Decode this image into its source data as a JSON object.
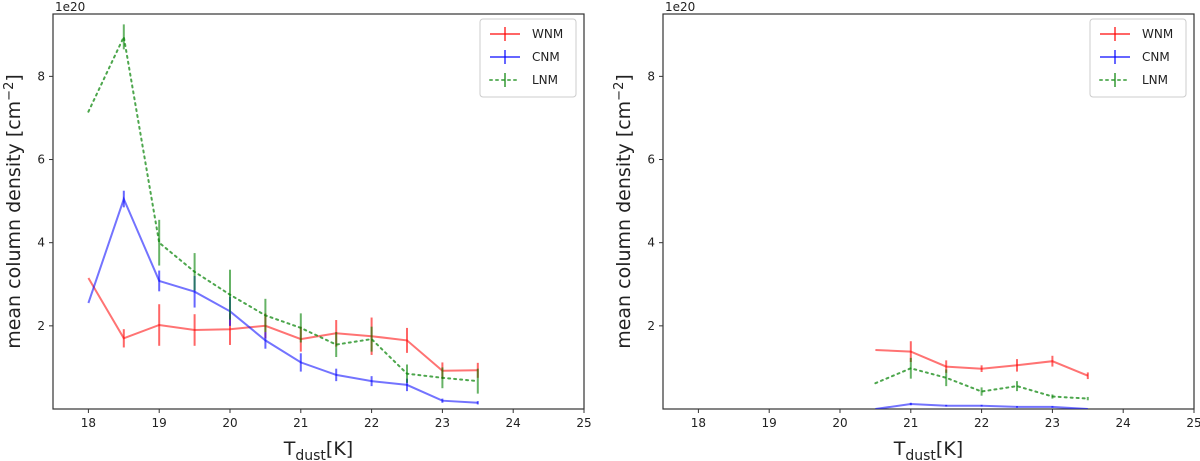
{
  "chart_data": [
    {
      "type": "line",
      "panel": "left",
      "xlabel_main": "T",
      "xlabel_sub": "dust",
      "xlabel_unit": "[K]",
      "ylabel": "mean column density [cm",
      "ylabel_exp": "−2",
      "ylabel_close": "]",
      "y_offset_label": "1e20",
      "xlim": [
        17.5,
        25
      ],
      "ylim": [
        0,
        9.5
      ],
      "xticks": [
        "18",
        "19",
        "20",
        "21",
        "22",
        "23",
        "24",
        "25"
      ],
      "yticks": [
        "2",
        "4",
        "6",
        "8"
      ],
      "legend_position": "top-right",
      "series": [
        {
          "name": "WNM",
          "color": "#ff0000",
          "style": "solid",
          "x": [
            18,
            18.5,
            19,
            19.5,
            20,
            20.5,
            21,
            21.5,
            22,
            22.5,
            23,
            23.5
          ],
          "y": [
            3.15,
            1.7,
            2.02,
            1.9,
            1.92,
            2.0,
            1.68,
            1.82,
            1.75,
            1.65,
            0.92,
            0.93
          ],
          "err": [
            0,
            0.22,
            0.5,
            0.38,
            0.38,
            0.3,
            0.3,
            0.32,
            0.45,
            0.3,
            0.2,
            0.18
          ]
        },
        {
          "name": "CNM",
          "color": "#0000ff",
          "style": "solid",
          "x": [
            18,
            18.5,
            19,
            19.5,
            20,
            20.5,
            21,
            21.5,
            22,
            22.5,
            23,
            23.5
          ],
          "y": [
            2.55,
            5.05,
            3.08,
            2.82,
            2.35,
            1.65,
            1.12,
            0.82,
            0.67,
            0.58,
            0.2,
            0.15
          ],
          "err": [
            0,
            0.2,
            0.25,
            0.38,
            0.35,
            0.2,
            0.22,
            0.15,
            0.12,
            0.15,
            0.05,
            0.04
          ]
        },
        {
          "name": "LNM",
          "color": "#008000",
          "style": "dotted",
          "x": [
            18,
            18.5,
            19,
            19.5,
            20,
            20.5,
            21,
            21.5,
            22,
            22.5,
            23,
            23.5
          ],
          "y": [
            7.15,
            8.95,
            4.0,
            3.3,
            2.75,
            2.25,
            1.95,
            1.55,
            1.68,
            0.85,
            0.75,
            0.67
          ],
          "err": [
            0,
            0.3,
            0.55,
            0.45,
            0.6,
            0.4,
            0.35,
            0.3,
            0.3,
            0.22,
            0.25,
            0.3
          ]
        }
      ]
    },
    {
      "type": "line",
      "panel": "right",
      "xlabel_main": "T",
      "xlabel_sub": "dust",
      "xlabel_unit": "[K]",
      "ylabel": "mean column density [cm",
      "ylabel_exp": "−2",
      "ylabel_close": "]",
      "y_offset_label": "1e20",
      "xlim": [
        17.5,
        25
      ],
      "ylim": [
        0,
        9.5
      ],
      "xticks": [
        "18",
        "19",
        "20",
        "21",
        "22",
        "23",
        "24",
        "25"
      ],
      "yticks": [
        "2",
        "4",
        "6",
        "8"
      ],
      "legend_position": "top-right",
      "series": [
        {
          "name": "WNM",
          "color": "#ff0000",
          "style": "solid",
          "x": [
            20.5,
            21,
            21.5,
            22,
            22.5,
            23,
            23.5
          ],
          "y": [
            1.42,
            1.38,
            1.02,
            0.97,
            1.05,
            1.15,
            0.8
          ],
          "err": [
            0,
            0.25,
            0.15,
            0.08,
            0.15,
            0.13,
            0.08
          ]
        },
        {
          "name": "CNM",
          "color": "#0000ff",
          "style": "solid",
          "x": [
            20.5,
            21,
            21.5,
            22,
            22.5,
            23,
            23.5
          ],
          "y": [
            0.0,
            0.12,
            0.08,
            0.08,
            0.05,
            0.05,
            0.0
          ],
          "err": [
            0,
            0.03,
            0.02,
            0.02,
            0.02,
            0.02,
            0
          ]
        },
        {
          "name": "LNM",
          "color": "#008000",
          "style": "dotted",
          "x": [
            20.5,
            21,
            21.5,
            22,
            22.5,
            23,
            23.5
          ],
          "y": [
            0.62,
            0.98,
            0.75,
            0.42,
            0.55,
            0.3,
            0.25
          ],
          "err": [
            0,
            0.25,
            0.2,
            0.1,
            0.12,
            0.05,
            0.04
          ]
        }
      ]
    }
  ]
}
